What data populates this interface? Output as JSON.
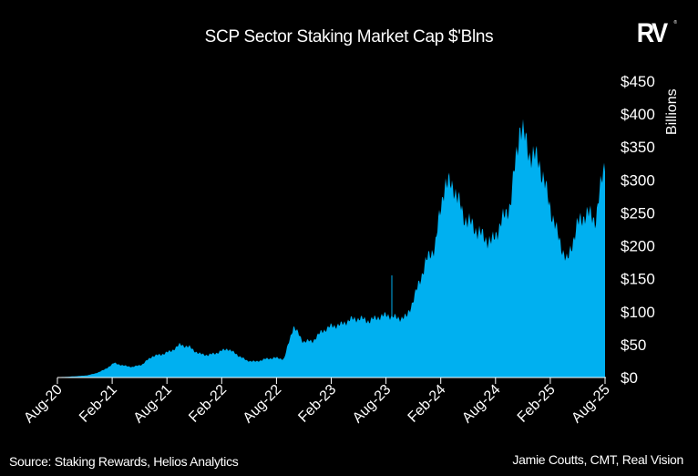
{
  "header": {
    "title": "SCP Sector Staking Market Cap $'Blns",
    "logo_text": "RV",
    "logo_mark": "®"
  },
  "footer": {
    "source": "Source: Staking Rewards, Helios Analytics",
    "credit": "Jamie Coutts, CMT, Real Vision"
  },
  "colors": {
    "background": "#000000",
    "area_fill": "#00B0F0",
    "text": "#FFFFFF",
    "axis": "#FFFFFF"
  },
  "chart_data": {
    "type": "area",
    "title": "SCP Sector Staking Market Cap $'Blns",
    "xlabel": "",
    "ylabel": "Billions",
    "ylim": [
      0,
      450
    ],
    "y_ticks": [
      0,
      50,
      100,
      150,
      200,
      250,
      300,
      350,
      400,
      450
    ],
    "y_tick_labels": [
      "$0",
      "$50",
      "$100",
      "$150",
      "$200",
      "$250",
      "$300",
      "$350",
      "$400",
      "$450"
    ],
    "y_axis_position": "right",
    "x_tick_labels": [
      "Aug-20",
      "Feb-21",
      "Aug-21",
      "Feb-22",
      "Aug-22",
      "Feb-23",
      "Aug-23",
      "Feb-24",
      "Aug-24",
      "Feb-25",
      "Aug-25"
    ],
    "grid": false,
    "legend": null,
    "series": [
      {
        "name": "SCP Sector Staking Market Cap",
        "x": [
          "Aug-20",
          "Oct-20",
          "Dec-20",
          "Jan-21",
          "Feb-21",
          "Mar-21",
          "Apr-21",
          "May-21",
          "Jun-21",
          "Jul-21",
          "Aug-21",
          "Sep-21",
          "Oct-21",
          "Nov-21",
          "Dec-21",
          "Jan-22",
          "Feb-22",
          "Mar-22",
          "Apr-22",
          "May-22",
          "Jun-22",
          "Jul-22",
          "Aug-22",
          "Sep-22",
          "Oct-22",
          "Nov-22",
          "Dec-22",
          "Jan-23",
          "Feb-23",
          "Mar-23",
          "Apr-23",
          "May-23",
          "Jun-23",
          "Jul-23",
          "Aug-23",
          "Sep-23",
          "Oct-23",
          "Nov-23",
          "Dec-23",
          "Jan-24",
          "Feb-24",
          "Mar-24",
          "Apr-24",
          "May-24",
          "Jun-24",
          "Jul-24",
          "Aug-24",
          "Sep-24",
          "Oct-24",
          "Nov-24",
          "Dec-24",
          "Jan-25",
          "Feb-25",
          "Mar-25",
          "Apr-25",
          "May-25",
          "Jun-25",
          "Jul-25",
          "Aug-25"
        ],
        "values": [
          0.5,
          1,
          2,
          3,
          6,
          12,
          22,
          18,
          16,
          20,
          32,
          35,
          40,
          50,
          46,
          36,
          34,
          38,
          44,
          35,
          26,
          24,
          28,
          30,
          28,
          78,
          55,
          55,
          70,
          78,
          80,
          88,
          90,
          86,
          92,
          95,
          90,
          92,
          130,
          175,
          200,
          295,
          290,
          245,
          230,
          215,
          205,
          235,
          265,
          385,
          340,
          330,
          270,
          215,
          175,
          230,
          250,
          240,
          330
        ]
      }
    ]
  }
}
